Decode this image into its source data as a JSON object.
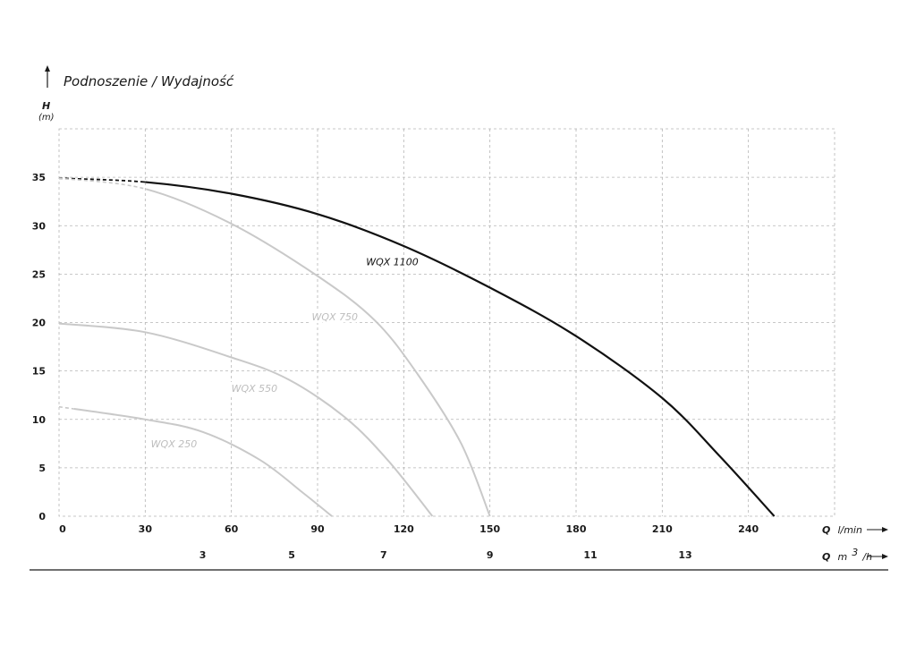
{
  "chart_data": {
    "type": "line",
    "title": "Podnoszenie / Wydajność",
    "ylabel": "H",
    "yunit": "(m)",
    "xlabel_prefix": "Q",
    "xlabel_unit": "l/min",
    "x2label_prefix": "Q",
    "x2label_unit_base": "m",
    "x2label_unit_sup": "3",
    "x2label_unit_tail": "/h",
    "xlim": [
      0,
      270
    ],
    "ylim": [
      0,
      40
    ],
    "grid": true,
    "xticks": [
      0,
      30,
      60,
      90,
      120,
      150,
      180,
      210,
      240
    ],
    "yticks": [
      0,
      5,
      10,
      15,
      20,
      25,
      30,
      35
    ],
    "x2ticks": [
      {
        "label": "3",
        "at_lmin": 50
      },
      {
        "label": "5",
        "at_lmin": 81
      },
      {
        "label": "7",
        "at_lmin": 113
      },
      {
        "label": "9",
        "at_lmin": 150
      },
      {
        "label": "11",
        "at_lmin": 185
      },
      {
        "label": "13",
        "at_lmin": 218
      }
    ],
    "series": [
      {
        "name": "WQX 1100",
        "color": "#111111",
        "dashed_until": 30,
        "label_at": [
          116,
          26.3
        ],
        "points": [
          [
            0,
            34.9
          ],
          [
            30,
            34.5
          ],
          [
            60,
            33.3
          ],
          [
            90,
            31.2
          ],
          [
            120,
            27.9
          ],
          [
            150,
            23.6
          ],
          [
            180,
            18.6
          ],
          [
            210,
            12.2
          ],
          [
            230,
            6.2
          ],
          [
            249,
            0
          ]
        ]
      },
      {
        "name": "WQX 750",
        "color": "#c9c9c9",
        "dashed_until": 30,
        "label_at": [
          96,
          20.6
        ],
        "points": [
          [
            0,
            34.9
          ],
          [
            30,
            33.8
          ],
          [
            60,
            30.2
          ],
          [
            90,
            24.8
          ],
          [
            110,
            20.2
          ],
          [
            125,
            14.6
          ],
          [
            140,
            7.5
          ],
          [
            150,
            0
          ]
        ]
      },
      {
        "name": "WQX 550",
        "color": "#c9c9c9",
        "dashed_until": 0,
        "label_at": [
          68,
          13.2
        ],
        "points": [
          [
            0,
            19.9
          ],
          [
            30,
            19.0
          ],
          [
            60,
            16.4
          ],
          [
            80,
            14.1
          ],
          [
            100,
            10.1
          ],
          [
            115,
            5.6
          ],
          [
            130,
            0
          ]
        ]
      },
      {
        "name": "WQX 250",
        "color": "#c9c9c9",
        "dashed_until": 5,
        "label_at": [
          40,
          7.5
        ],
        "points": [
          [
            0,
            11.3
          ],
          [
            30,
            10.0
          ],
          [
            50,
            8.7
          ],
          [
            70,
            5.8
          ],
          [
            85,
            2.4
          ],
          [
            95,
            0
          ]
        ]
      }
    ]
  }
}
